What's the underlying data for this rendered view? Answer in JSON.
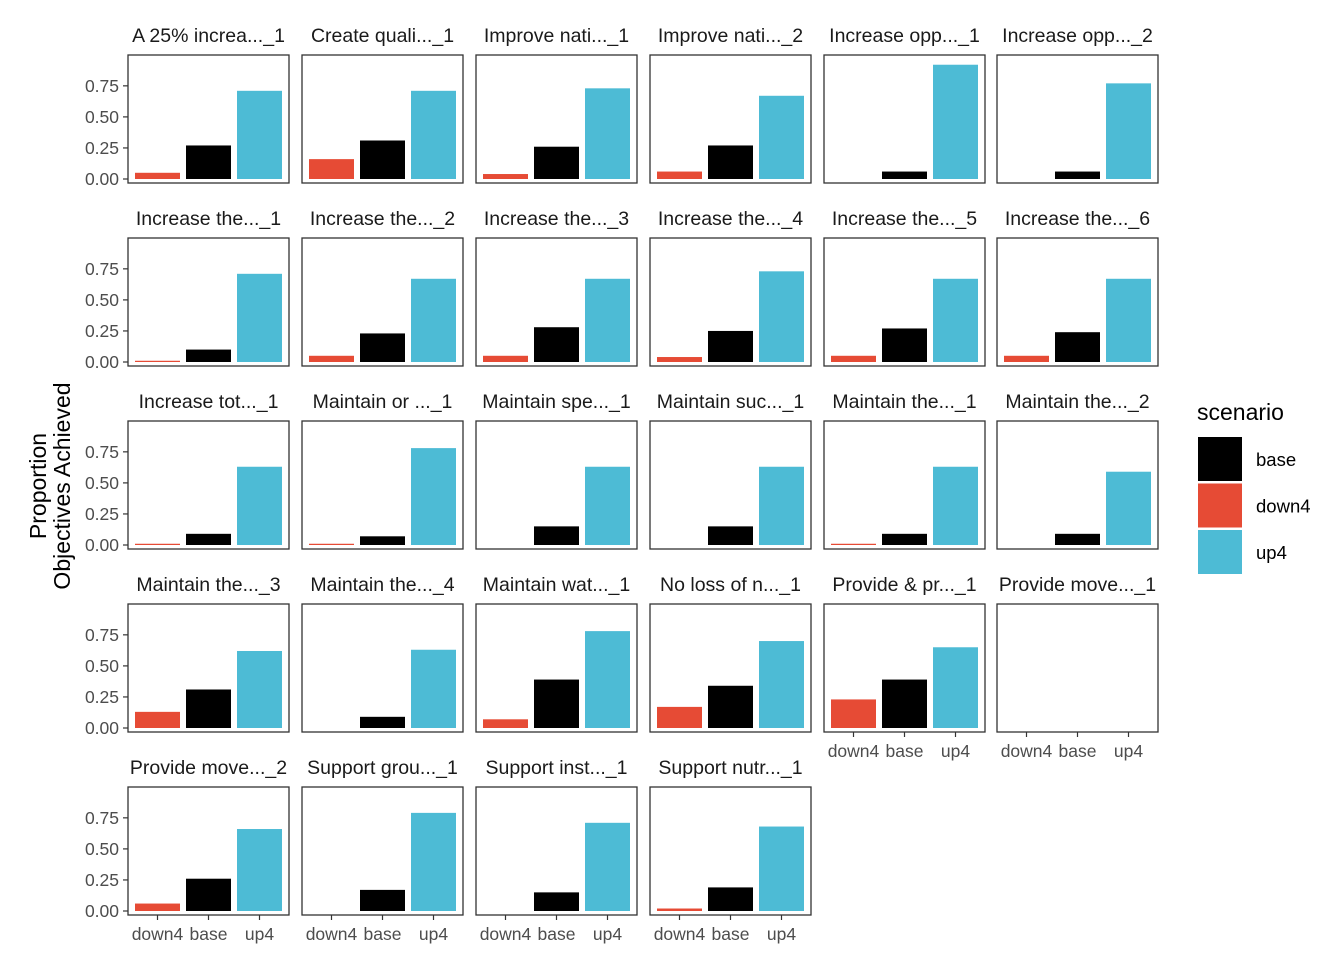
{
  "chart_data": {
    "type": "bar",
    "ylabel": [
      "Proportion",
      "Objectives Achieved"
    ],
    "ylim": [
      0,
      0.95
    ],
    "yticks": [
      "0.00",
      "0.25",
      "0.50",
      "0.75"
    ],
    "ytick_values": [
      0,
      0.25,
      0.5,
      0.75
    ],
    "categories": [
      "down4",
      "base",
      "up4"
    ],
    "legend": {
      "title": "scenario",
      "position": "right",
      "entries": [
        {
          "name": "base",
          "color": "#000000"
        },
        {
          "name": "down4",
          "color": "#E64B35"
        },
        {
          "name": "up4",
          "color": "#4DBBD5"
        }
      ]
    },
    "grid": false,
    "panels": [
      {
        "title": "A 25% increa..._1",
        "values": [
          0.05,
          0.27,
          0.71
        ]
      },
      {
        "title": "Create quali..._1",
        "values": [
          0.16,
          0.31,
          0.71
        ]
      },
      {
        "title": "Improve nati..._1",
        "values": [
          0.04,
          0.26,
          0.73
        ]
      },
      {
        "title": "Improve nati..._2",
        "values": [
          0.06,
          0.27,
          0.67
        ]
      },
      {
        "title": "Increase opp..._1",
        "values": [
          0,
          0.06,
          0.92
        ]
      },
      {
        "title": "Increase opp..._2",
        "values": [
          0,
          0.06,
          0.77
        ]
      },
      {
        "title": "Increase the..._1",
        "values": [
          0.01,
          0.1,
          0.71
        ]
      },
      {
        "title": "Increase the..._2",
        "values": [
          0.05,
          0.23,
          0.67
        ]
      },
      {
        "title": "Increase the..._3",
        "values": [
          0.05,
          0.28,
          0.67
        ]
      },
      {
        "title": "Increase the..._4",
        "values": [
          0.04,
          0.25,
          0.73
        ]
      },
      {
        "title": "Increase the..._5",
        "values": [
          0.05,
          0.27,
          0.67
        ]
      },
      {
        "title": "Increase the..._6",
        "values": [
          0.05,
          0.24,
          0.67
        ]
      },
      {
        "title": "Increase tot..._1",
        "values": [
          0.01,
          0.09,
          0.63
        ]
      },
      {
        "title": "Maintain or ..._1",
        "values": [
          0.01,
          0.07,
          0.78
        ]
      },
      {
        "title": "Maintain spe..._1",
        "values": [
          0,
          0.15,
          0.63
        ]
      },
      {
        "title": "Maintain suc..._1",
        "values": [
          0,
          0.15,
          0.63
        ]
      },
      {
        "title": "Maintain the..._1",
        "values": [
          0.01,
          0.09,
          0.63
        ]
      },
      {
        "title": "Maintain the..._2",
        "values": [
          0,
          0.09,
          0.59
        ]
      },
      {
        "title": "Maintain the..._3",
        "values": [
          0.13,
          0.31,
          0.62
        ]
      },
      {
        "title": "Maintain the..._4",
        "values": [
          0,
          0.09,
          0.63
        ]
      },
      {
        "title": "Maintain wat..._1",
        "values": [
          0.07,
          0.39,
          0.78
        ]
      },
      {
        "title": "No loss of n..._1",
        "values": [
          0.17,
          0.34,
          0.7
        ]
      },
      {
        "title": "Provide & pr..._1",
        "values": [
          0.23,
          0.39,
          0.65
        ]
      },
      {
        "title": "Provide move..._1",
        "values": [
          0,
          0,
          0
        ]
      },
      {
        "title": "Provide move..._2",
        "values": [
          0.06,
          0.26,
          0.66
        ]
      },
      {
        "title": "Support grou..._1",
        "values": [
          0,
          0.17,
          0.79
        ]
      },
      {
        "title": "Support inst..._1",
        "values": [
          0,
          0.15,
          0.71
        ]
      },
      {
        "title": "Support nutr..._1",
        "values": [
          0.02,
          0.19,
          0.68
        ]
      }
    ]
  }
}
